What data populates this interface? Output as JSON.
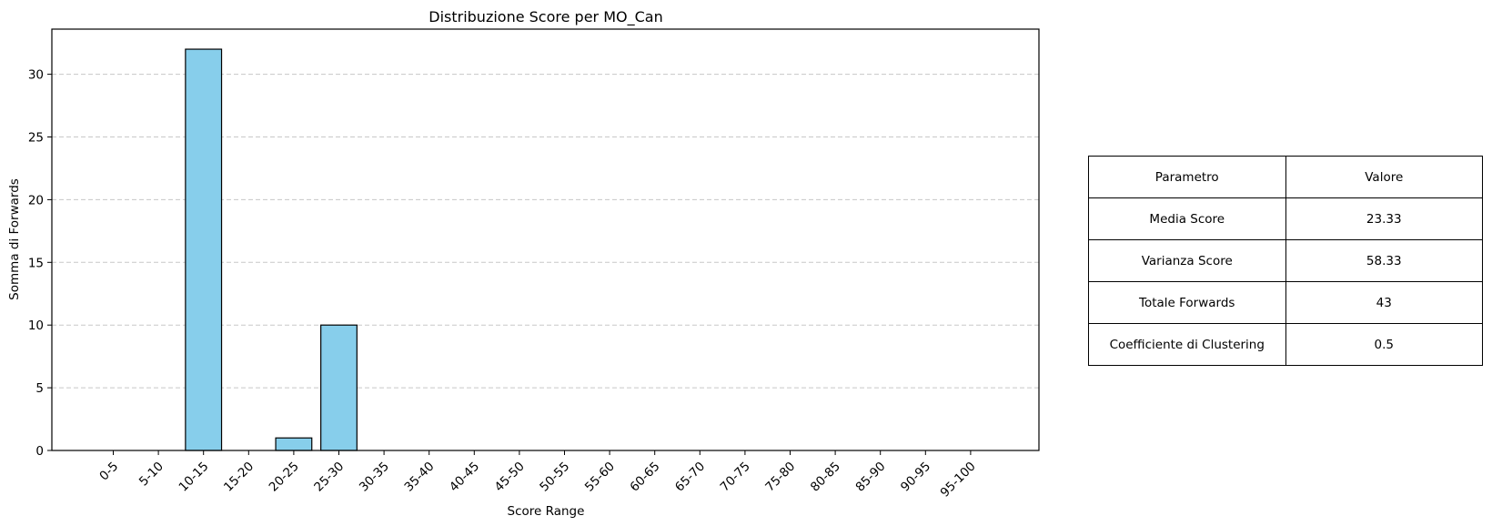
{
  "chart_data": {
    "type": "bar",
    "title": "Distribuzione Score per MO_Can",
    "xlabel": "Score Range",
    "ylabel": "Somma di Forwards",
    "categories": [
      "0-5",
      "5-10",
      "10-15",
      "15-20",
      "20-25",
      "25-30",
      "30-35",
      "35-40",
      "40-45",
      "45-50",
      "50-55",
      "55-60",
      "60-65",
      "65-70",
      "70-75",
      "75-80",
      "80-85",
      "85-90",
      "90-95",
      "95-100"
    ],
    "values": [
      0,
      0,
      32,
      0,
      1,
      10,
      0,
      0,
      0,
      0,
      0,
      0,
      0,
      0,
      0,
      0,
      0,
      0,
      0,
      0
    ],
    "ylim": [
      0,
      33.6
    ],
    "yticks": [
      0,
      5,
      10,
      15,
      20,
      25,
      30
    ],
    "grid": "y-dashed",
    "bar_color": "#87CEEB",
    "edge_color": "#000000"
  },
  "table": {
    "header": [
      "Parametro",
      "Valore"
    ],
    "rows": [
      [
        "Media Score",
        "23.33"
      ],
      [
        "Varianza Score",
        "58.33"
      ],
      [
        "Totale Forwards",
        "43"
      ],
      [
        "Coefficiente di Clustering",
        "0.5"
      ]
    ]
  }
}
